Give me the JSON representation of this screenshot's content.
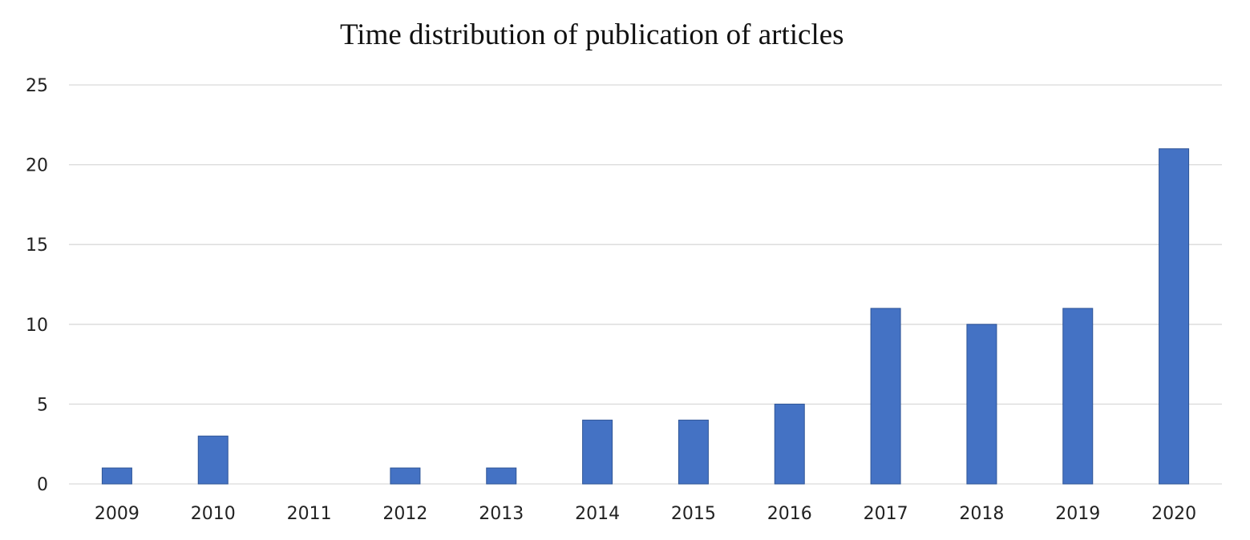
{
  "chart_data": {
    "type": "bar",
    "title": "Time distribution of publication of articles",
    "xlabel": "",
    "ylabel": "",
    "categories": [
      "2009",
      "2010",
      "2011",
      "2012",
      "2013",
      "2014",
      "2015",
      "2016",
      "2017",
      "2018",
      "2019",
      "2020"
    ],
    "values": [
      1,
      3,
      0,
      1,
      1,
      4,
      4,
      5,
      11,
      10,
      11,
      21
    ],
    "ylim": [
      0,
      25
    ],
    "yticks": [
      "0",
      "5",
      "10",
      "15",
      "20",
      "25"
    ],
    "grid": true,
    "legend": "none",
    "bar_color": "#4472C4",
    "grid_color": "#D9D9D9"
  }
}
